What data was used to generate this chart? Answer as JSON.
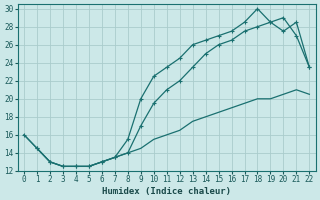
{
  "xlabel": "Humidex (Indice chaleur)",
  "background_color": "#cce8e8",
  "grid_color": "#aacccc",
  "line_color": "#1a7070",
  "xlim": [
    -0.5,
    22.5
  ],
  "ylim": [
    12,
    30.5
  ],
  "xticks": [
    0,
    1,
    2,
    3,
    4,
    5,
    6,
    7,
    8,
    9,
    10,
    11,
    12,
    13,
    14,
    15,
    16,
    17,
    18,
    19,
    20,
    21,
    22
  ],
  "yticks": [
    12,
    14,
    16,
    18,
    20,
    22,
    24,
    26,
    28,
    30
  ],
  "line1_x": [
    0,
    1,
    2,
    3,
    4,
    5,
    6,
    7,
    8,
    9,
    10,
    11,
    12,
    13,
    14,
    15,
    16,
    17,
    18,
    19,
    20,
    21,
    22
  ],
  "line1_y": [
    16,
    14.5,
    13,
    12.5,
    12.5,
    12.5,
    13,
    13.5,
    14,
    14.5,
    15.5,
    16,
    16.5,
    17.5,
    18,
    18.5,
    19,
    19.5,
    20,
    20,
    20.5,
    21,
    20.5
  ],
  "line2_x": [
    0,
    1,
    2,
    3,
    4,
    5,
    6,
    7,
    8,
    9,
    10,
    11,
    12,
    13,
    14,
    15,
    16,
    17,
    18,
    19,
    20,
    21,
    22
  ],
  "line2_y": [
    16,
    14.5,
    13,
    12.5,
    12.5,
    12.5,
    13,
    13.5,
    14,
    17,
    19.5,
    21,
    22,
    23.5,
    25,
    26,
    26.5,
    27.5,
    28,
    28.5,
    27.5,
    28.5,
    23.5
  ],
  "line3_x": [
    1,
    2,
    3,
    4,
    5,
    6,
    7,
    8,
    9,
    10,
    11,
    12,
    13,
    14,
    15,
    16,
    17,
    18,
    19,
    20,
    21,
    22
  ],
  "line3_y": [
    14.5,
    13,
    12.5,
    12.5,
    12.5,
    13,
    13.5,
    15.5,
    20,
    22.5,
    23.5,
    24.5,
    26,
    26.5,
    27,
    27.5,
    28.5,
    30,
    28.5,
    29,
    27,
    23.5
  ]
}
